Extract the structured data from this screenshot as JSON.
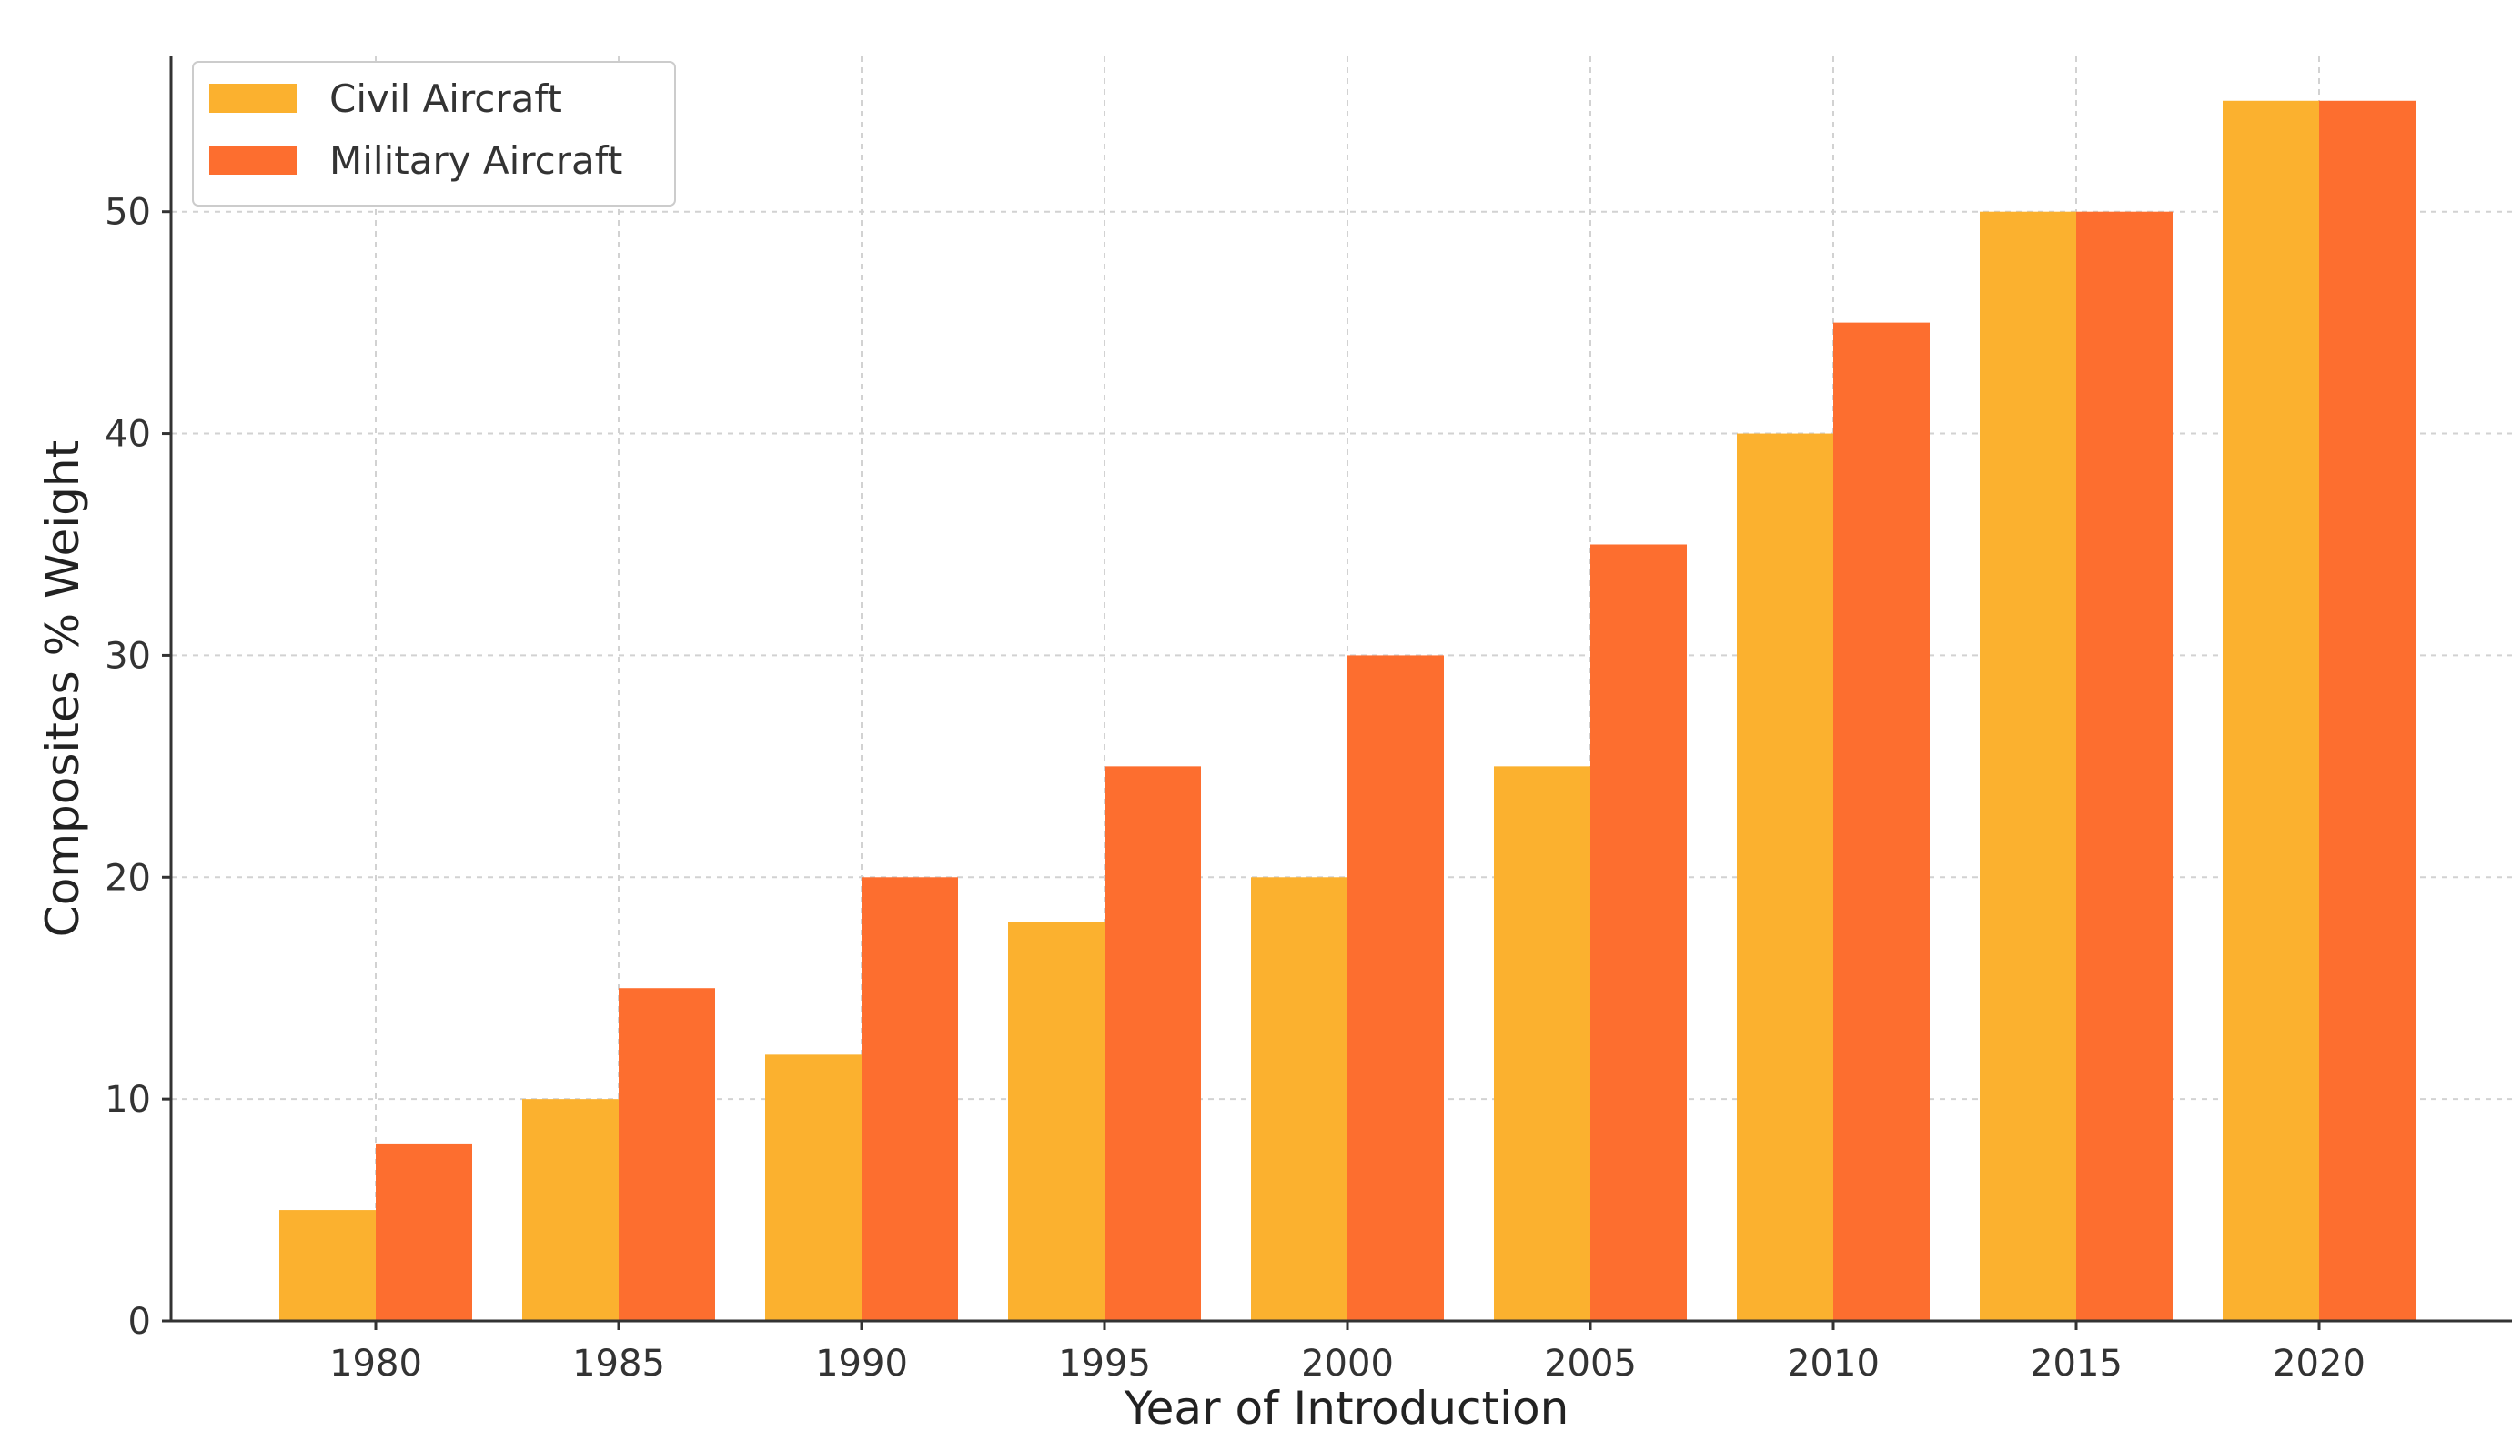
{
  "chart_data": {
    "type": "bar",
    "title": "",
    "xlabel": "Year of Introduction",
    "ylabel": "Composites % Weight",
    "categories": [
      "1980",
      "1985",
      "1990",
      "1995",
      "2000",
      "2005",
      "2010",
      "2015",
      "2020"
    ],
    "series": [
      {
        "name": "Civil Aircraft",
        "color": "#FBB12F",
        "values": [
          5,
          10,
          12,
          18,
          20,
          25,
          40,
          50,
          55
        ]
      },
      {
        "name": "Military Aircraft",
        "color": "#FD6E2F",
        "values": [
          8,
          15,
          20,
          25,
          30,
          35,
          45,
          50,
          55
        ]
      }
    ],
    "ylim": [
      0,
      57
    ],
    "yticks": [
      0,
      10,
      20,
      30,
      40,
      50
    ],
    "grid": true,
    "legend": "top-left"
  }
}
